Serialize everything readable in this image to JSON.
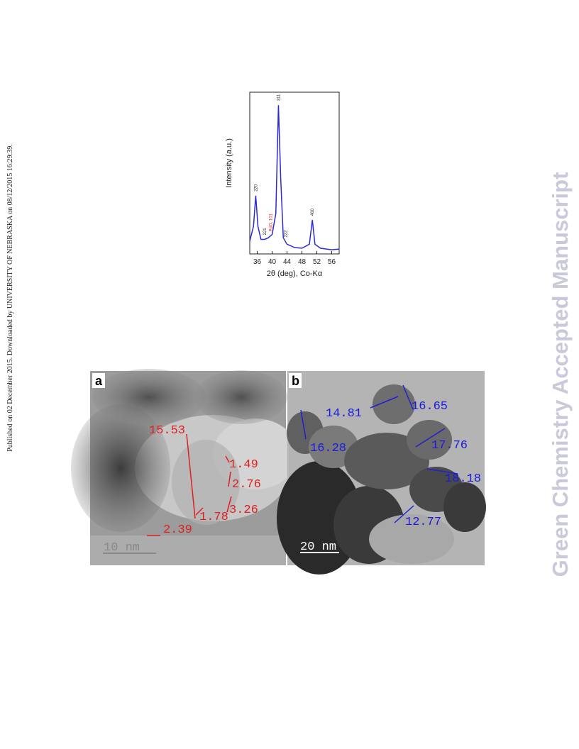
{
  "side_note": "Published on 02 December 2015. Downloaded by UNIVERSITY OF NEBRASKA on 08/12/2015 16:29:39.",
  "watermark": "Green Chemistry Accepted Manuscript",
  "chart_data": {
    "type": "line",
    "xlabel": "2θ (deg), Co-Kα",
    "ylabel": "Intensity (a.u.)",
    "x": [
      34,
      35,
      35.6,
      36.2,
      37,
      38,
      39,
      40,
      41,
      41.7,
      42.3,
      43,
      44,
      46,
      48,
      50,
      50.8,
      51.5,
      53,
      56,
      58
    ],
    "series": [
      {
        "color": "#2a2ad8",
        "values": [
          8,
          17,
          36,
          17,
          9,
          9,
          10,
          12,
          25,
          92,
          47,
          10,
          6,
          4,
          3.5,
          6,
          21,
          6,
          3.5,
          2.6,
          3
        ]
      }
    ],
    "xlim": [
      34,
      58
    ],
    "xticks": [
      36,
      40,
      44,
      48,
      52,
      56
    ],
    "ylim": [
      0,
      100
    ],
    "annotations": [
      {
        "text": "220",
        "x": 35.6,
        "color": "#222222"
      },
      {
        "text": "221",
        "x": 38,
        "color": "#222222"
      },
      {
        "text": "PdO, 101",
        "x": 39.6,
        "color": "#e02020"
      },
      {
        "text": "311",
        "x": 41.7,
        "color": "#222222"
      },
      {
        "text": "222",
        "x": 43.6,
        "color": "#222222"
      },
      {
        "text": "400",
        "x": 50.8,
        "color": "#222222"
      }
    ]
  },
  "figure": {
    "panels": [
      {
        "label": "a",
        "scale_bar": "10 nm",
        "measurements": [
          "15.53",
          "1.49",
          "2.76",
          "3.26",
          "1.78",
          "2.39"
        ]
      },
      {
        "label": "b",
        "scale_bar": "20 nm",
        "measurements": [
          "14.81",
          "16.65",
          "16.28",
          "17.76",
          "18.18",
          "12.77"
        ]
      }
    ]
  }
}
